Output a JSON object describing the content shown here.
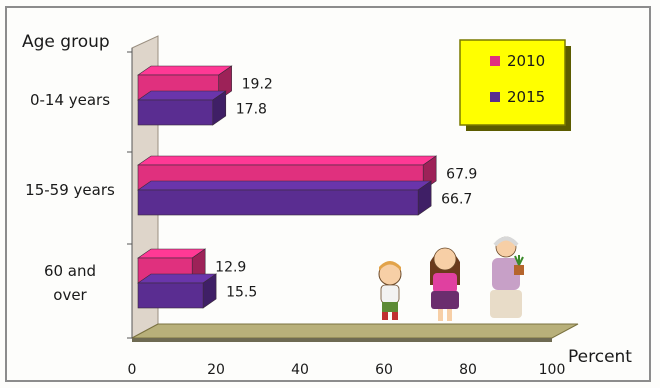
{
  "chart_data": {
    "type": "bar",
    "orientation": "horizontal",
    "style": "3d",
    "title": "",
    "ylabel": "Age group",
    "xlabel": "Percent",
    "categories": [
      [
        "0-14 years"
      ],
      [
        "15-59 years"
      ],
      [
        "60 and",
        "over"
      ]
    ],
    "series": [
      {
        "name": "2010",
        "values": [
          19.2,
          67.9,
          12.9
        ],
        "color": "#e0307e"
      },
      {
        "name": "2015",
        "values": [
          17.8,
          66.7,
          15.5
        ],
        "color": "#5a2d91"
      }
    ],
    "value_labels": [
      [
        "19.2",
        "67.9",
        "12.9"
      ],
      [
        "17.8",
        "66.7",
        "15.5"
      ]
    ],
    "xlim": [
      0,
      100
    ],
    "xticks": [
      "0",
      "20",
      "40",
      "60",
      "80",
      "100"
    ],
    "legend": {
      "position": "top-right",
      "background": "#ffff00",
      "border": "#7a7a00",
      "entries": [
        "2010",
        "2015"
      ]
    },
    "wall_color": "#ded5ca",
    "floor_color": "#b8b07a",
    "illustration": "three cartoon figures: a boy, a woman, an elderly person holding a potted plant"
  }
}
